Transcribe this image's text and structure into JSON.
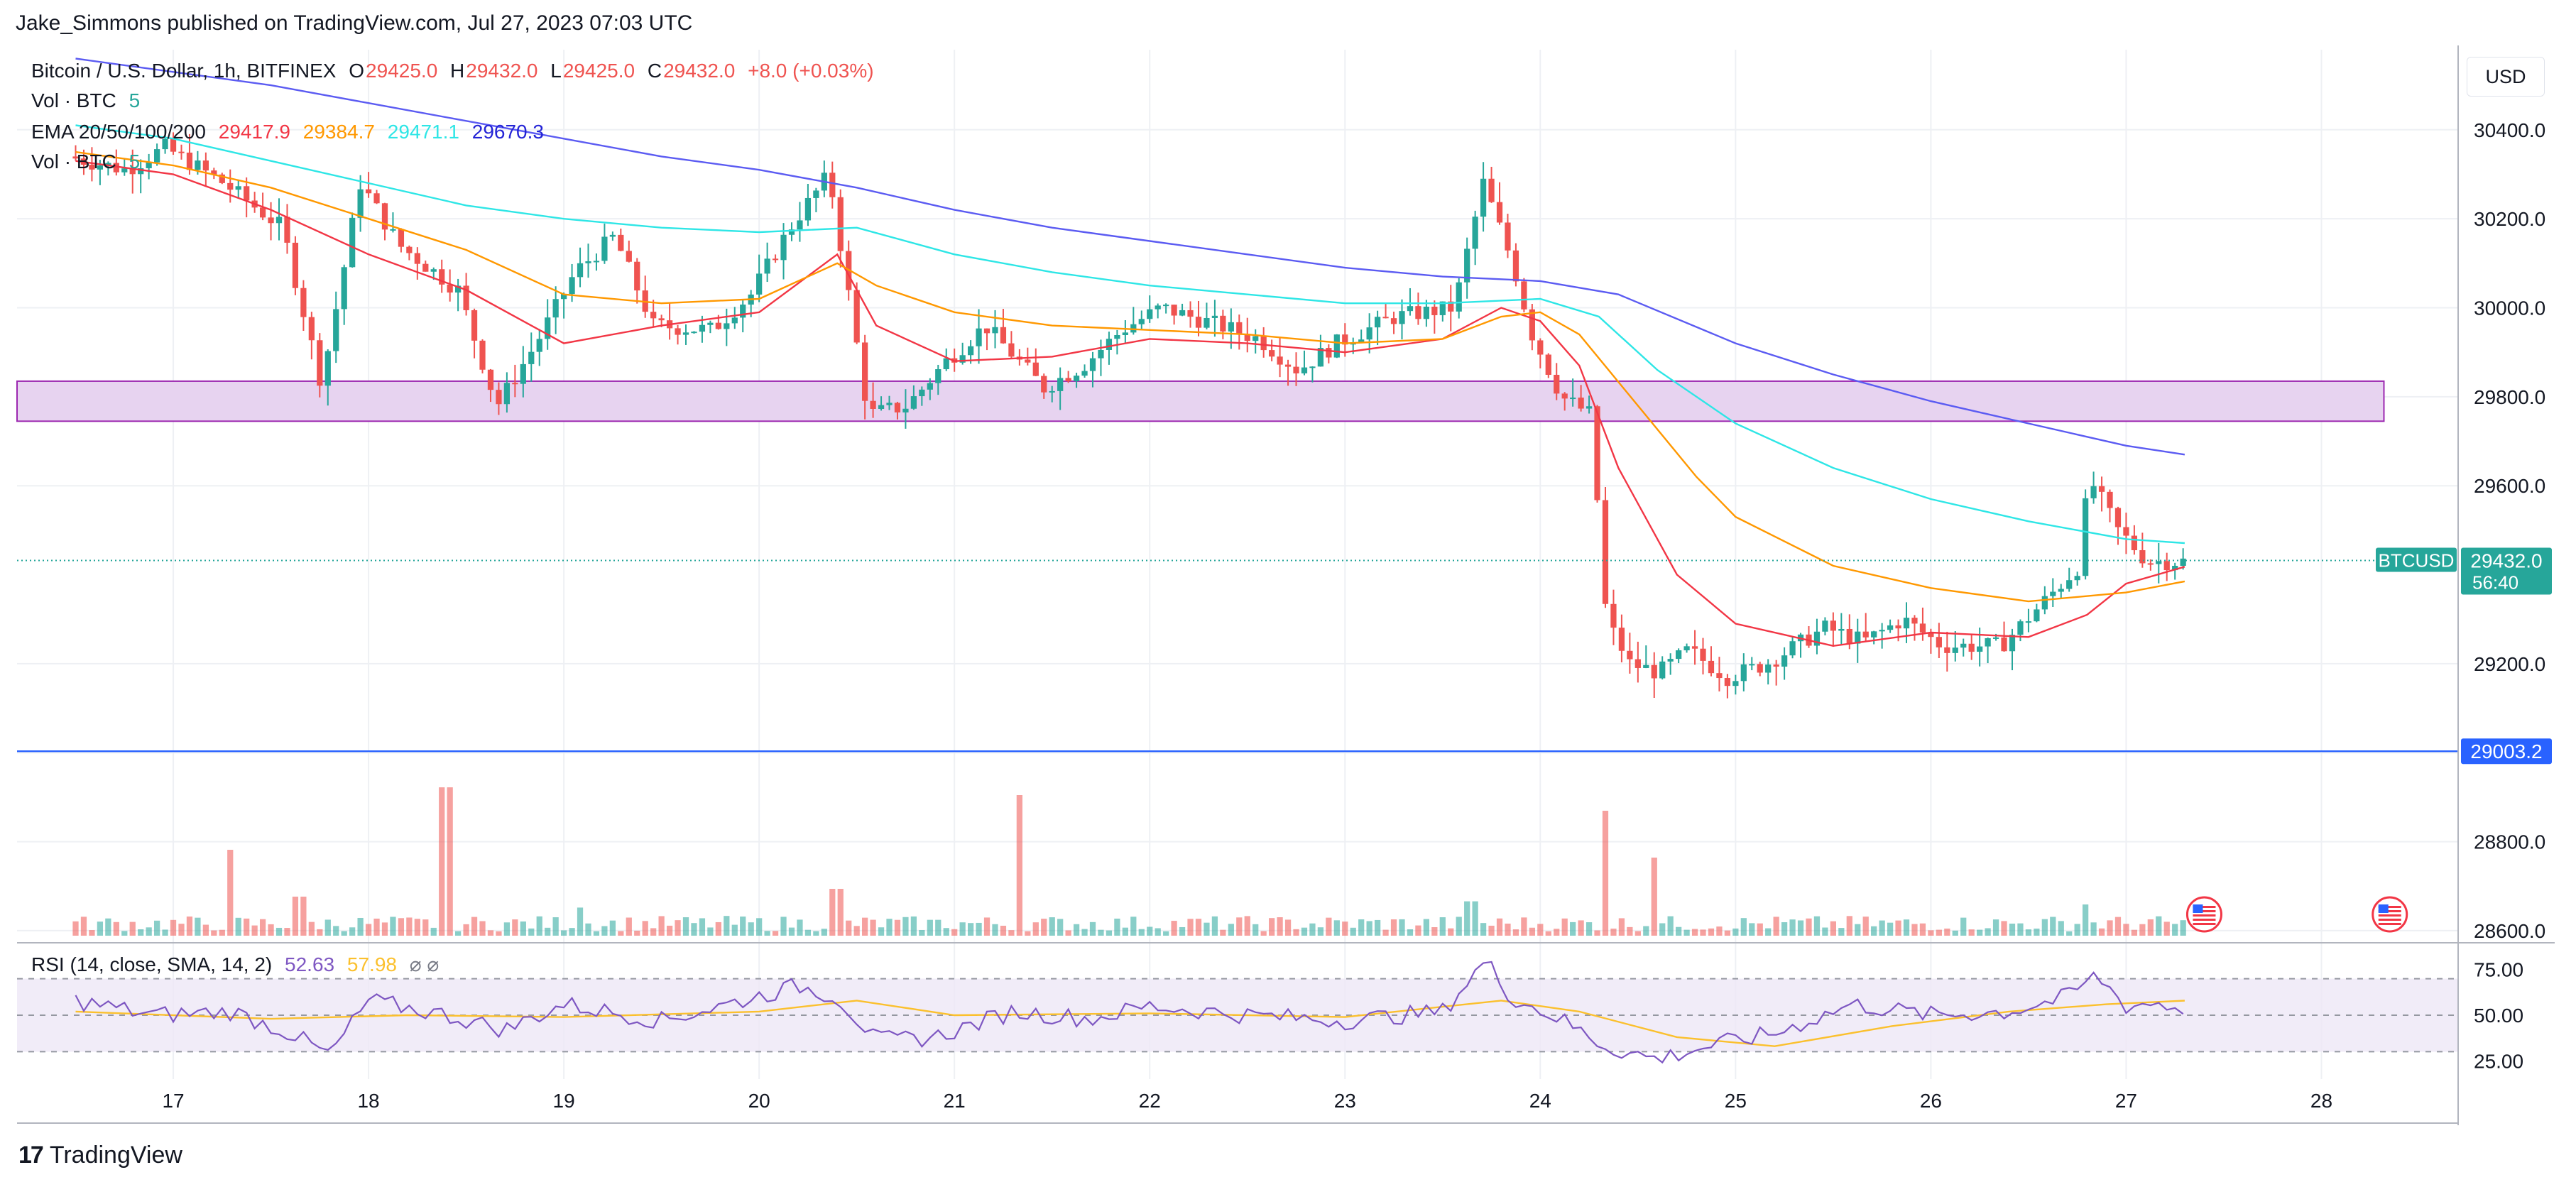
{
  "header": {
    "published_by": "Jake_Simmons published on TradingView.com, Jul 27, 2023 07:03 UTC"
  },
  "legend": {
    "symbol": "Bitcoin / U.S. Dollar, 1h, BITFINEX",
    "open_label": "O",
    "open": "29425.0",
    "high_label": "H",
    "high": "29432.0",
    "low_label": "L",
    "low": "29425.0",
    "close_label": "C",
    "close": "29432.0",
    "change": "+8.0 (+0.03%)",
    "vol_line1": "Vol · BTC",
    "vol_value1": "5",
    "ema_label": "EMA 20/50/100/200",
    "ema20": "29417.9",
    "ema50": "29384.7",
    "ema100": "29471.1",
    "ema200": "29670.3",
    "vol_line2": "Vol · BTC",
    "vol_value2": "5",
    "rsi_label": "RSI (14, close, SMA, 14, 2)",
    "rsi_value": "52.63",
    "rsi_sma": "57.98",
    "rsi_icons": "⌀ ⌀"
  },
  "toolbar": {
    "currency_button": "USD"
  },
  "footer": {
    "brand": "TradingView",
    "brand_mark": "17"
  },
  "colors": {
    "up": "#26a69a",
    "down": "#ef5350",
    "ema20": "#f23645",
    "ema50": "#ff9800",
    "ema100": "#2ee6e6",
    "ema200": "#5b5bf2",
    "zone_fill": "#e7d3f0",
    "zone_border": "#9c27b0",
    "hline": "#2962ff",
    "rsi": "#7e57c2",
    "rsi_sma": "#fbc02d"
  },
  "chart_data": {
    "type": "candlestick",
    "symbol": "BTCUSD",
    "timeframe": "1h",
    "x_ticks": [
      "17",
      "18",
      "19",
      "20",
      "21",
      "22",
      "23",
      "24",
      "25",
      "26",
      "27",
      "28"
    ],
    "y_ticks": [
      "30400.0",
      "30200.0",
      "30000.0",
      "29800.0",
      "29600.0",
      "29200.0",
      "29000.0",
      "28800.0",
      "28600.0"
    ],
    "ylim": [
      28560,
      30580
    ],
    "price_label": {
      "name": "BTCUSD",
      "value": "29432.0",
      "countdown": "56:40"
    },
    "horizontal_line": {
      "value": "29003.2"
    },
    "zone": {
      "low": 29745,
      "high": 29835
    },
    "ohlc_points": [
      [
        16.5,
        30340
      ],
      [
        16.8,
        30310
      ],
      [
        17.0,
        30360
      ],
      [
        17.3,
        30280
      ],
      [
        17.6,
        30180
      ],
      [
        17.8,
        29830
      ],
      [
        18.0,
        30280
      ],
      [
        18.2,
        30140
      ],
      [
        18.5,
        30040
      ],
      [
        18.7,
        29780
      ],
      [
        18.9,
        29920
      ],
      [
        19.1,
        30080
      ],
      [
        19.3,
        30160
      ],
      [
        19.5,
        29960
      ],
      [
        19.8,
        29950
      ],
      [
        20.0,
        30030
      ],
      [
        20.2,
        30180
      ],
      [
        20.4,
        30300
      ],
      [
        20.6,
        29760
      ],
      [
        20.8,
        29780
      ],
      [
        21.0,
        29880
      ],
      [
        21.2,
        29960
      ],
      [
        21.5,
        29820
      ],
      [
        21.7,
        29870
      ],
      [
        21.9,
        29950
      ],
      [
        22.1,
        30000
      ],
      [
        22.4,
        29960
      ],
      [
        22.6,
        29930
      ],
      [
        22.8,
        29860
      ],
      [
        23.0,
        29920
      ],
      [
        23.3,
        29980
      ],
      [
        23.6,
        30000
      ],
      [
        23.75,
        30280
      ],
      [
        23.9,
        30100
      ],
      [
        24.0,
        29940
      ],
      [
        24.15,
        29800
      ],
      [
        24.3,
        29760
      ],
      [
        24.38,
        29300
      ],
      [
        24.5,
        29200
      ],
      [
        24.65,
        29180
      ],
      [
        24.8,
        29230
      ],
      [
        25.0,
        29170
      ],
      [
        25.2,
        29200
      ],
      [
        25.5,
        29280
      ],
      [
        25.7,
        29250
      ],
      [
        25.9,
        29300
      ],
      [
        26.1,
        29240
      ],
      [
        26.4,
        29240
      ],
      [
        26.6,
        29330
      ],
      [
        26.8,
        29420
      ],
      [
        26.85,
        29620
      ],
      [
        27.0,
        29500
      ],
      [
        27.15,
        29430
      ]
    ],
    "ema_series": [
      {
        "name": "EMA 20",
        "last": 29417.9,
        "points": [
          [
            16.5,
            30330
          ],
          [
            17.0,
            30300
          ],
          [
            17.5,
            30220
          ],
          [
            18.0,
            30120
          ],
          [
            18.5,
            30040
          ],
          [
            19.0,
            29920
          ],
          [
            19.5,
            29960
          ],
          [
            20.0,
            29990
          ],
          [
            20.4,
            30120
          ],
          [
            20.6,
            29960
          ],
          [
            21.0,
            29880
          ],
          [
            21.5,
            29890
          ],
          [
            22.0,
            29930
          ],
          [
            22.5,
            29920
          ],
          [
            23.0,
            29900
          ],
          [
            23.5,
            29930
          ],
          [
            23.8,
            30000
          ],
          [
            24.0,
            29970
          ],
          [
            24.2,
            29870
          ],
          [
            24.4,
            29640
          ],
          [
            24.7,
            29400
          ],
          [
            25.0,
            29290
          ],
          [
            25.5,
            29240
          ],
          [
            26.0,
            29270
          ],
          [
            26.5,
            29260
          ],
          [
            26.8,
            29310
          ],
          [
            27.0,
            29380
          ],
          [
            27.3,
            29418
          ]
        ]
      },
      {
        "name": "EMA 50",
        "last": 29384.7,
        "points": [
          [
            16.5,
            30350
          ],
          [
            17.0,
            30320
          ],
          [
            17.5,
            30270
          ],
          [
            18.0,
            30200
          ],
          [
            18.5,
            30130
          ],
          [
            19.0,
            30030
          ],
          [
            19.5,
            30010
          ],
          [
            20.0,
            30020
          ],
          [
            20.4,
            30100
          ],
          [
            20.6,
            30050
          ],
          [
            21.0,
            29990
          ],
          [
            21.5,
            29960
          ],
          [
            22.0,
            29950
          ],
          [
            22.5,
            29940
          ],
          [
            23.0,
            29920
          ],
          [
            23.5,
            29930
          ],
          [
            23.8,
            29980
          ],
          [
            24.0,
            29990
          ],
          [
            24.2,
            29940
          ],
          [
            24.5,
            29780
          ],
          [
            24.8,
            29620
          ],
          [
            25.0,
            29530
          ],
          [
            25.5,
            29420
          ],
          [
            26.0,
            29370
          ],
          [
            26.5,
            29340
          ],
          [
            27.0,
            29360
          ],
          [
            27.3,
            29385
          ]
        ]
      },
      {
        "name": "EMA 100",
        "last": 29471.1,
        "points": [
          [
            16.5,
            30410
          ],
          [
            17.0,
            30380
          ],
          [
            17.5,
            30330
          ],
          [
            18.0,
            30280
          ],
          [
            18.5,
            30230
          ],
          [
            19.0,
            30200
          ],
          [
            19.5,
            30180
          ],
          [
            20.0,
            30170
          ],
          [
            20.5,
            30180
          ],
          [
            21.0,
            30120
          ],
          [
            21.5,
            30080
          ],
          [
            22.0,
            30050
          ],
          [
            22.5,
            30030
          ],
          [
            23.0,
            30010
          ],
          [
            23.5,
            30010
          ],
          [
            24.0,
            30020
          ],
          [
            24.3,
            29980
          ],
          [
            24.6,
            29860
          ],
          [
            25.0,
            29740
          ],
          [
            25.5,
            29640
          ],
          [
            26.0,
            29570
          ],
          [
            26.5,
            29520
          ],
          [
            27.0,
            29480
          ],
          [
            27.3,
            29471
          ]
        ]
      },
      {
        "name": "EMA 200",
        "last": 29670.3,
        "points": [
          [
            16.5,
            30560
          ],
          [
            17.0,
            30530
          ],
          [
            17.5,
            30500
          ],
          [
            18.0,
            30460
          ],
          [
            18.5,
            30420
          ],
          [
            19.0,
            30380
          ],
          [
            19.5,
            30340
          ],
          [
            20.0,
            30310
          ],
          [
            20.5,
            30270
          ],
          [
            21.0,
            30220
          ],
          [
            21.5,
            30180
          ],
          [
            22.0,
            30150
          ],
          [
            22.5,
            30120
          ],
          [
            23.0,
            30090
          ],
          [
            23.5,
            30070
          ],
          [
            24.0,
            30060
          ],
          [
            24.4,
            30030
          ],
          [
            25.0,
            29920
          ],
          [
            25.5,
            29850
          ],
          [
            26.0,
            29790
          ],
          [
            26.5,
            29740
          ],
          [
            27.0,
            29690
          ],
          [
            27.3,
            29670
          ]
        ]
      }
    ],
    "volume_spikes": [
      [
        17.3,
        55
      ],
      [
        17.65,
        25
      ],
      [
        18.4,
        95
      ],
      [
        19.1,
        18
      ],
      [
        20.4,
        30
      ],
      [
        21.35,
        90
      ],
      [
        23.65,
        22
      ],
      [
        24.35,
        80
      ],
      [
        24.6,
        50
      ],
      [
        26.8,
        20
      ]
    ],
    "rsi": {
      "ylim": [
        15,
        85
      ],
      "ticks": [
        "75.00",
        "50.00",
        "25.00"
      ],
      "points": [
        [
          16.5,
          58
        ],
        [
          16.9,
          50
        ],
        [
          17.3,
          52
        ],
        [
          17.6,
          40
        ],
        [
          17.8,
          28
        ],
        [
          18.0,
          58
        ],
        [
          18.4,
          50
        ],
        [
          18.7,
          42
        ],
        [
          19.0,
          56
        ],
        [
          19.5,
          47
        ],
        [
          19.8,
          55
        ],
        [
          20.2,
          66
        ],
        [
          20.4,
          60
        ],
        [
          20.6,
          36
        ],
        [
          20.9,
          38
        ],
        [
          21.3,
          52
        ],
        [
          21.7,
          48
        ],
        [
          22.0,
          55
        ],
        [
          22.5,
          50
        ],
        [
          23.0,
          47
        ],
        [
          23.5,
          52
        ],
        [
          23.72,
          80
        ],
        [
          23.85,
          60
        ],
        [
          24.1,
          48
        ],
        [
          24.35,
          32
        ],
        [
          24.6,
          26
        ],
        [
          24.9,
          34
        ],
        [
          25.2,
          40
        ],
        [
          25.6,
          56
        ],
        [
          26.0,
          50
        ],
        [
          26.4,
          52
        ],
        [
          26.7,
          60
        ],
        [
          26.85,
          72
        ],
        [
          27.0,
          55
        ],
        [
          27.15,
          57
        ],
        [
          27.3,
          52.63
        ]
      ],
      "sma_points": [
        [
          16.5,
          52
        ],
        [
          17.5,
          48
        ],
        [
          18.2,
          50
        ],
        [
          19.0,
          49
        ],
        [
          20.0,
          52
        ],
        [
          20.5,
          58
        ],
        [
          21.0,
          50
        ],
        [
          22.0,
          51
        ],
        [
          23.0,
          49
        ],
        [
          23.8,
          58
        ],
        [
          24.2,
          52
        ],
        [
          24.7,
          38
        ],
        [
          25.2,
          33
        ],
        [
          25.8,
          44
        ],
        [
          26.4,
          52
        ],
        [
          26.9,
          56
        ],
        [
          27.3,
          57.98
        ]
      ]
    }
  }
}
